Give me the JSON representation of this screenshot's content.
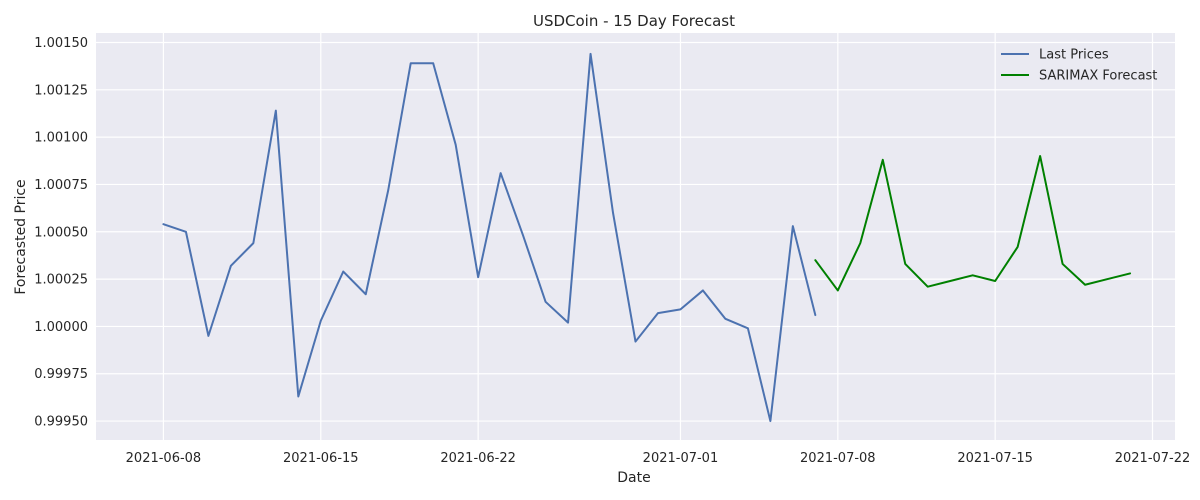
{
  "chart_data": {
    "type": "line",
    "title": "USDCoin - 15 Day Forecast",
    "xlabel": "Date",
    "ylabel": "Forecasted Price",
    "x_type": "date",
    "xlim": [
      "2021-06-05",
      "2021-07-23"
    ],
    "ylim": [
      0.9994,
      1.00155
    ],
    "x_ticks": [
      "2021-06-08",
      "2021-06-15",
      "2021-06-22",
      "2021-07-01",
      "2021-07-08",
      "2021-07-15",
      "2021-07-22"
    ],
    "y_ticks": [
      0.9995,
      0.99975,
      1.0,
      1.00025,
      1.0005,
      1.00075,
      1.001,
      1.00125,
      1.0015
    ],
    "y_tick_labels": [
      "0.99950",
      "0.99975",
      "1.00000",
      "1.00025",
      "1.00050",
      "1.00075",
      "1.00100",
      "1.00125",
      "1.00150"
    ],
    "grid": true,
    "legend_position": "top-right",
    "series": [
      {
        "name": "Last Prices",
        "color": "#4c72b0",
        "x": [
          "2021-06-08",
          "2021-06-09",
          "2021-06-10",
          "2021-06-11",
          "2021-06-12",
          "2021-06-13",
          "2021-06-14",
          "2021-06-15",
          "2021-06-16",
          "2021-06-17",
          "2021-06-18",
          "2021-06-19",
          "2021-06-20",
          "2021-06-21",
          "2021-06-22",
          "2021-06-23",
          "2021-06-24",
          "2021-06-25",
          "2021-06-26",
          "2021-06-27",
          "2021-06-28",
          "2021-06-29",
          "2021-06-30",
          "2021-07-01",
          "2021-07-02",
          "2021-07-03",
          "2021-07-04",
          "2021-07-05",
          "2021-07-06",
          "2021-07-07"
        ],
        "values": [
          1.00054,
          1.0005,
          0.99995,
          1.00032,
          1.00044,
          1.00114,
          0.99963,
          1.00003,
          1.00029,
          1.00017,
          1.00072,
          1.00139,
          1.00139,
          1.00096,
          1.00026,
          1.00081,
          1.00048,
          1.00013,
          1.00002,
          1.00144,
          1.0006,
          0.99992,
          1.00007,
          1.00009,
          1.00019,
          1.00004,
          0.99999,
          0.9995,
          1.00053,
          1.00006
        ]
      },
      {
        "name": "SARIMAX Forecast",
        "color": "#008000",
        "x": [
          "2021-07-07",
          "2021-07-08",
          "2021-07-09",
          "2021-07-10",
          "2021-07-11",
          "2021-07-12",
          "2021-07-13",
          "2021-07-14",
          "2021-07-15",
          "2021-07-16",
          "2021-07-17",
          "2021-07-18",
          "2021-07-19",
          "2021-07-20",
          "2021-07-21"
        ],
        "values": [
          1.00035,
          1.00019,
          1.00044,
          1.00088,
          1.00033,
          1.00021,
          1.00024,
          1.00027,
          1.00024,
          1.00042,
          1.0009,
          1.00033,
          1.00022,
          1.00025,
          1.00028
        ]
      }
    ]
  },
  "style": {
    "background": "#eaeaf2",
    "grid_color": "#ffffff",
    "text_color": "#262626"
  }
}
